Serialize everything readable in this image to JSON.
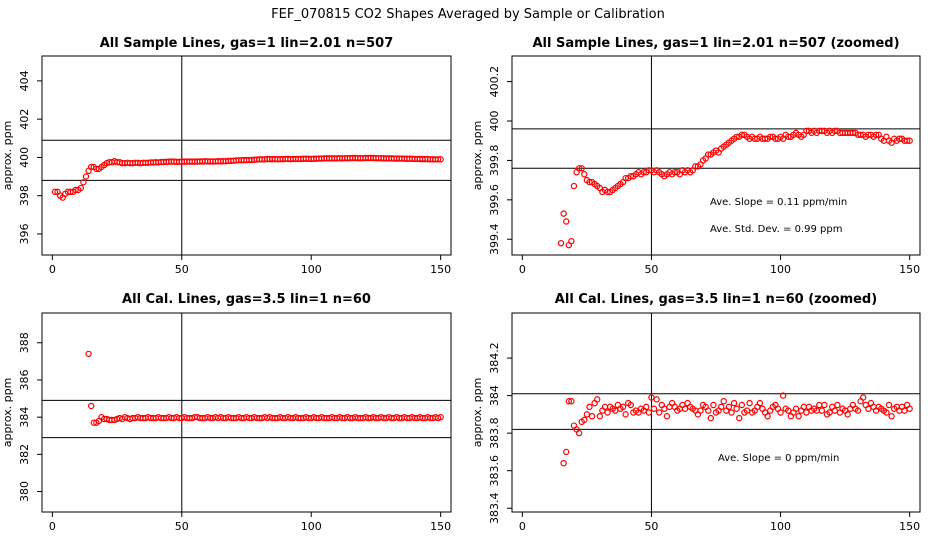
{
  "page_title": "FEF_070815  CO2 Shapes Averaged by Sample or Calibration",
  "chart_data": [
    {
      "type": "scatter",
      "title": "All Sample Lines, gas=1 lin=2.01 n=507",
      "ylabel": "approx. ppm",
      "xlabel": "",
      "xlim": [
        -4,
        154
      ],
      "ylim": [
        394.9,
        405.3
      ],
      "xticks": [
        0,
        50,
        100,
        150
      ],
      "yticks": [
        396,
        398,
        400,
        402,
        404
      ],
      "hlines": [
        398.8,
        400.9
      ],
      "vlines": [
        50
      ],
      "grid": false,
      "point_color": "#ff0000",
      "annotations": [],
      "x": [
        1,
        2,
        3,
        4,
        5,
        6,
        7,
        8,
        9,
        10,
        11,
        12,
        13,
        14,
        15,
        16,
        17,
        18,
        19,
        20,
        21,
        22,
        23,
        24,
        25,
        26,
        27,
        28,
        29,
        30,
        31,
        32,
        33,
        34,
        35,
        36,
        37,
        38,
        39,
        40,
        41,
        42,
        43,
        44,
        45,
        46,
        47,
        48,
        49,
        50,
        51,
        52,
        53,
        54,
        55,
        56,
        57,
        58,
        59,
        60,
        61,
        62,
        63,
        64,
        65,
        66,
        67,
        68,
        69,
        70,
        71,
        72,
        73,
        74,
        75,
        76,
        77,
        78,
        79,
        80,
        81,
        82,
        83,
        84,
        85,
        86,
        87,
        88,
        89,
        90,
        91,
        92,
        93,
        94,
        95,
        96,
        97,
        98,
        99,
        100,
        101,
        102,
        103,
        104,
        105,
        106,
        107,
        108,
        109,
        110,
        111,
        112,
        113,
        114,
        115,
        116,
        117,
        118,
        119,
        120,
        121,
        122,
        123,
        124,
        125,
        126,
        127,
        128,
        129,
        130,
        131,
        132,
        133,
        134,
        135,
        136,
        137,
        138,
        139,
        140,
        141,
        142,
        143,
        144,
        145,
        146,
        147,
        148,
        149,
        150
      ],
      "y": [
        398.2,
        398.2,
        398.0,
        397.9,
        398.1,
        398.2,
        398.2,
        398.2,
        398.3,
        398.3,
        398.4,
        398.7,
        399.0,
        399.3,
        399.5,
        399.5,
        399.4,
        399.4,
        399.5,
        399.6,
        399.7,
        399.75,
        399.75,
        399.8,
        399.75,
        399.75,
        399.7,
        399.7,
        399.72,
        399.7,
        399.7,
        399.72,
        399.72,
        399.7,
        399.72,
        399.72,
        399.72,
        399.74,
        399.74,
        399.75,
        399.74,
        399.76,
        399.76,
        399.77,
        399.78,
        399.78,
        399.78,
        399.77,
        399.77,
        399.78,
        399.78,
        399.78,
        399.78,
        399.78,
        399.78,
        399.78,
        399.79,
        399.79,
        399.8,
        399.79,
        399.79,
        399.79,
        399.79,
        399.8,
        399.8,
        399.8,
        399.8,
        399.82,
        399.82,
        399.83,
        399.84,
        399.85,
        399.85,
        399.86,
        399.86,
        399.86,
        399.87,
        399.88,
        399.89,
        399.9,
        399.9,
        399.9,
        399.91,
        399.91,
        399.91,
        399.91,
        399.9,
        399.91,
        399.91,
        399.92,
        399.92,
        399.91,
        399.92,
        399.92,
        399.92,
        399.92,
        399.93,
        399.93,
        399.93,
        399.92,
        399.93,
        399.93,
        399.94,
        399.94,
        399.95,
        399.95,
        399.95,
        399.95,
        399.95,
        399.95,
        399.96,
        399.95,
        399.96,
        399.96,
        399.96,
        399.97,
        399.97,
        399.96,
        399.96,
        399.96,
        399.97,
        399.97,
        399.97,
        399.97,
        399.96,
        399.96,
        399.96,
        399.95,
        399.95,
        399.95,
        399.95,
        399.94,
        399.94,
        399.94,
        399.94,
        399.93,
        399.93,
        399.93,
        399.93,
        399.92,
        399.92,
        399.92,
        399.91,
        399.91,
        399.91,
        399.9,
        399.9,
        399.9,
        399.9,
        399.9
      ]
    },
    {
      "type": "scatter",
      "title": "All Sample Lines, gas=1 lin=2.01 n=507 (zoomed)",
      "ylabel": "approx. ppm",
      "xlabel": "",
      "xlim": [
        -4,
        154
      ],
      "ylim": [
        399.32,
        400.33
      ],
      "xticks": [
        0,
        50,
        100,
        150
      ],
      "yticks": [
        399.4,
        399.6,
        399.8,
        400.0,
        400.2
      ],
      "ytick_labels": [
        "399.4",
        "399.6",
        "399.8",
        "400",
        "400.2"
      ],
      "hlines": [
        399.76,
        399.96
      ],
      "vlines": [
        50
      ],
      "grid": false,
      "point_color": "#ff0000",
      "annotations": [
        "Ave. Slope =  0.11  ppm/min",
        "Ave. Std. Dev. =  0.99  ppm"
      ],
      "x": [
        15,
        16,
        17,
        18,
        19,
        20,
        21,
        22,
        23,
        24,
        25,
        26,
        27,
        28,
        29,
        30,
        31,
        32,
        33,
        34,
        35,
        36,
        37,
        38,
        39,
        40,
        41,
        42,
        43,
        44,
        45,
        46,
        47,
        48,
        49,
        50,
        51,
        52,
        53,
        54,
        55,
        56,
        57,
        58,
        59,
        60,
        61,
        62,
        63,
        64,
        65,
        66,
        67,
        68,
        69,
        70,
        71,
        72,
        73,
        74,
        75,
        76,
        77,
        78,
        79,
        80,
        81,
        82,
        83,
        84,
        85,
        86,
        87,
        88,
        89,
        90,
        91,
        92,
        93,
        94,
        95,
        96,
        97,
        98,
        99,
        100,
        101,
        102,
        103,
        104,
        105,
        106,
        107,
        108,
        109,
        110,
        111,
        112,
        113,
        114,
        115,
        116,
        117,
        118,
        119,
        120,
        121,
        122,
        123,
        124,
        125,
        126,
        127,
        128,
        129,
        130,
        131,
        132,
        133,
        134,
        135,
        136,
        137,
        138,
        139,
        140,
        141,
        142,
        143,
        144,
        145,
        146,
        147,
        148,
        149,
        150
      ],
      "y": [
        399.38,
        399.53,
        399.49,
        399.37,
        399.39,
        399.67,
        399.74,
        399.76,
        399.76,
        399.73,
        399.7,
        399.69,
        399.69,
        399.68,
        399.67,
        399.66,
        399.64,
        399.65,
        399.64,
        399.64,
        399.65,
        399.66,
        399.67,
        399.68,
        399.69,
        399.71,
        399.71,
        399.72,
        399.72,
        399.73,
        399.74,
        399.73,
        399.74,
        399.74,
        399.75,
        399.75,
        399.74,
        399.75,
        399.74,
        399.73,
        399.72,
        399.73,
        399.74,
        399.73,
        399.74,
        399.74,
        399.73,
        399.75,
        399.74,
        399.75,
        399.74,
        399.75,
        399.77,
        399.77,
        399.78,
        399.8,
        399.81,
        399.83,
        399.83,
        399.84,
        399.85,
        399.84,
        399.86,
        399.87,
        399.88,
        399.89,
        399.9,
        399.91,
        399.92,
        399.92,
        399.93,
        399.93,
        399.92,
        399.91,
        399.92,
        399.91,
        399.91,
        399.92,
        399.91,
        399.91,
        399.91,
        399.92,
        399.92,
        399.91,
        399.91,
        399.92,
        399.91,
        399.93,
        399.92,
        399.92,
        399.93,
        399.94,
        399.93,
        399.92,
        399.93,
        399.95,
        399.95,
        399.94,
        399.95,
        399.94,
        399.95,
        399.95,
        399.95,
        399.94,
        399.95,
        399.94,
        399.95,
        399.95,
        399.94,
        399.94,
        399.94,
        399.94,
        399.94,
        399.94,
        399.94,
        399.93,
        399.93,
        399.93,
        399.92,
        399.93,
        399.93,
        399.92,
        399.93,
        399.93,
        399.91,
        399.9,
        399.92,
        399.9,
        399.89,
        399.91,
        399.9,
        399.91,
        399.91,
        399.9,
        399.9,
        399.9
      ]
    },
    {
      "type": "scatter",
      "title": "All Cal. Lines, gas=3.5 lin=1 n=60",
      "ylabel": "approx. ppm",
      "xlabel": "",
      "xlim": [
        -4,
        154
      ],
      "ylim": [
        378.9,
        389.6
      ],
      "xticks": [
        0,
        50,
        100,
        150
      ],
      "yticks": [
        380,
        382,
        384,
        386,
        388
      ],
      "hlines": [
        382.9,
        384.9
      ],
      "vlines": [
        50
      ],
      "grid": false,
      "point_color": "#ff0000",
      "annotations": [],
      "x": [
        14,
        15,
        16,
        17,
        18,
        19,
        20,
        21,
        22,
        23,
        24,
        25,
        26,
        27,
        28,
        29,
        30,
        31,
        32,
        33,
        34,
        35,
        36,
        37,
        38,
        39,
        40,
        41,
        42,
        43,
        44,
        45,
        46,
        47,
        48,
        49,
        50,
        51,
        52,
        53,
        54,
        55,
        56,
        57,
        58,
        59,
        60,
        61,
        62,
        63,
        64,
        65,
        66,
        67,
        68,
        69,
        70,
        71,
        72,
        73,
        74,
        75,
        76,
        77,
        78,
        79,
        80,
        81,
        82,
        83,
        84,
        85,
        86,
        87,
        88,
        89,
        90,
        91,
        92,
        93,
        94,
        95,
        96,
        97,
        98,
        99,
        100,
        101,
        102,
        103,
        104,
        105,
        106,
        107,
        108,
        109,
        110,
        111,
        112,
        113,
        114,
        115,
        116,
        117,
        118,
        119,
        120,
        121,
        122,
        123,
        124,
        125,
        126,
        127,
        128,
        129,
        130,
        131,
        132,
        133,
        134,
        135,
        136,
        137,
        138,
        139,
        140,
        141,
        142,
        143,
        144,
        145,
        146,
        147,
        148,
        149,
        150
      ],
      "y": [
        387.4,
        384.6,
        383.7,
        383.7,
        383.8,
        384.0,
        383.9,
        383.9,
        383.85,
        383.85,
        383.85,
        383.9,
        383.95,
        383.9,
        384.0,
        383.95,
        383.9,
        383.95,
        383.95,
        384.0,
        383.95,
        383.95,
        383.95,
        384.0,
        383.95,
        383.95,
        383.95,
        384.0,
        383.95,
        383.95,
        383.95,
        384.0,
        383.95,
        383.95,
        384.0,
        383.95,
        383.95,
        384.0,
        383.95,
        383.95,
        383.95,
        384.0,
        384.0,
        383.95,
        383.95,
        383.95,
        384.0,
        383.95,
        383.95,
        384.0,
        383.95,
        384.0,
        383.95,
        383.95,
        384.0,
        383.95,
        383.95,
        383.95,
        384.0,
        383.95,
        383.95,
        384.0,
        383.95,
        383.95,
        384.0,
        383.95,
        383.95,
        383.95,
        384.0,
        383.95,
        384.0,
        383.95,
        383.95,
        383.95,
        384.0,
        383.95,
        383.95,
        384.0,
        383.95,
        383.95,
        384.0,
        383.95,
        383.95,
        383.95,
        384.0,
        383.95,
        383.95,
        384.0,
        383.95,
        383.95,
        384.0,
        383.95,
        383.95,
        383.95,
        384.0,
        383.95,
        383.95,
        384.0,
        383.95,
        383.95,
        384.0,
        383.95,
        383.95,
        384.0,
        383.95,
        383.95,
        383.95,
        384.0,
        383.95,
        383.95,
        384.0,
        383.95,
        383.95,
        384.0,
        383.95,
        383.95,
        384.0,
        383.95,
        383.95,
        384.0,
        383.95,
        383.95,
        384.0,
        383.95,
        383.95,
        384.0,
        383.95,
        383.95,
        384.0,
        383.95,
        383.95,
        384.0,
        383.95,
        383.95,
        384.0,
        383.95,
        384.0
      ]
    },
    {
      "type": "scatter",
      "title": "All Cal. Lines, gas=3.5 lin=1 n=60 (zoomed)",
      "ylabel": "approx. ppm",
      "xlabel": "",
      "xlim": [
        -4,
        154
      ],
      "ylim": [
        383.38,
        384.44
      ],
      "xticks": [
        0,
        50,
        100,
        150
      ],
      "yticks": [
        383.4,
        383.6,
        383.8,
        384.0,
        384.2
      ],
      "ytick_labels": [
        "383.4",
        "383.6",
        "383.8",
        "384",
        "384.2"
      ],
      "hlines": [
        383.82,
        384.01
      ],
      "vlines": [
        50
      ],
      "grid": false,
      "point_color": "#ff0000",
      "annotations": [
        "Ave. Slope =  0  ppm/min"
      ],
      "x": [
        16,
        17,
        18,
        19,
        20,
        21,
        22,
        23,
        24,
        25,
        26,
        27,
        28,
        29,
        30,
        31,
        32,
        33,
        34,
        35,
        36,
        37,
        38,
        39,
        40,
        41,
        42,
        43,
        44,
        45,
        46,
        47,
        48,
        49,
        50,
        51,
        52,
        53,
        54,
        55,
        56,
        57,
        58,
        59,
        60,
        61,
        62,
        63,
        64,
        65,
        66,
        67,
        68,
        69,
        70,
        71,
        72,
        73,
        74,
        75,
        76,
        77,
        78,
        79,
        80,
        81,
        82,
        83,
        84,
        85,
        86,
        87,
        88,
        89,
        90,
        91,
        92,
        93,
        94,
        95,
        96,
        97,
        98,
        99,
        100,
        101,
        102,
        103,
        104,
        105,
        106,
        107,
        108,
        109,
        110,
        111,
        112,
        113,
        114,
        115,
        116,
        117,
        118,
        119,
        120,
        121,
        122,
        123,
        124,
        125,
        126,
        127,
        128,
        129,
        130,
        131,
        132,
        133,
        134,
        135,
        136,
        137,
        138,
        139,
        140,
        141,
        142,
        143,
        144,
        145,
        146,
        147,
        148,
        149,
        150
      ],
      "y": [
        383.64,
        383.7,
        383.97,
        383.97,
        383.84,
        383.82,
        383.8,
        383.86,
        383.87,
        383.9,
        383.94,
        383.89,
        383.96,
        383.98,
        383.89,
        383.92,
        383.94,
        383.91,
        383.94,
        383.93,
        383.92,
        383.95,
        383.93,
        383.94,
        383.9,
        383.96,
        383.95,
        383.91,
        383.92,
        383.91,
        383.93,
        383.92,
        383.94,
        383.91,
        383.99,
        383.93,
        383.98,
        383.91,
        383.95,
        383.93,
        383.89,
        383.94,
        383.96,
        383.94,
        383.92,
        383.93,
        383.95,
        383.93,
        383.96,
        383.94,
        383.93,
        383.92,
        383.9,
        383.92,
        383.95,
        383.94,
        383.92,
        383.88,
        383.95,
        383.91,
        383.92,
        383.94,
        383.97,
        383.92,
        383.94,
        383.91,
        383.96,
        383.93,
        383.88,
        383.95,
        383.91,
        383.92,
        383.96,
        383.91,
        383.92,
        383.94,
        383.96,
        383.93,
        383.91,
        383.89,
        383.92,
        383.94,
        383.95,
        383.93,
        383.91,
        384.0,
        383.93,
        383.92,
        383.89,
        383.91,
        383.93,
        383.89,
        383.92,
        383.94,
        383.91,
        383.94,
        383.92,
        383.93,
        383.92,
        383.95,
        383.92,
        383.95,
        383.9,
        383.91,
        383.94,
        383.92,
        383.95,
        383.91,
        383.93,
        383.92,
        383.9,
        383.93,
        383.95,
        383.93,
        383.92,
        383.97,
        383.99,
        383.95,
        383.93,
        383.96,
        383.94,
        383.92,
        383.94,
        383.93,
        383.92,
        383.91,
        383.95,
        383.89,
        383.93,
        383.94,
        383.92,
        383.94,
        383.92,
        383.95,
        383.93
      ]
    }
  ]
}
